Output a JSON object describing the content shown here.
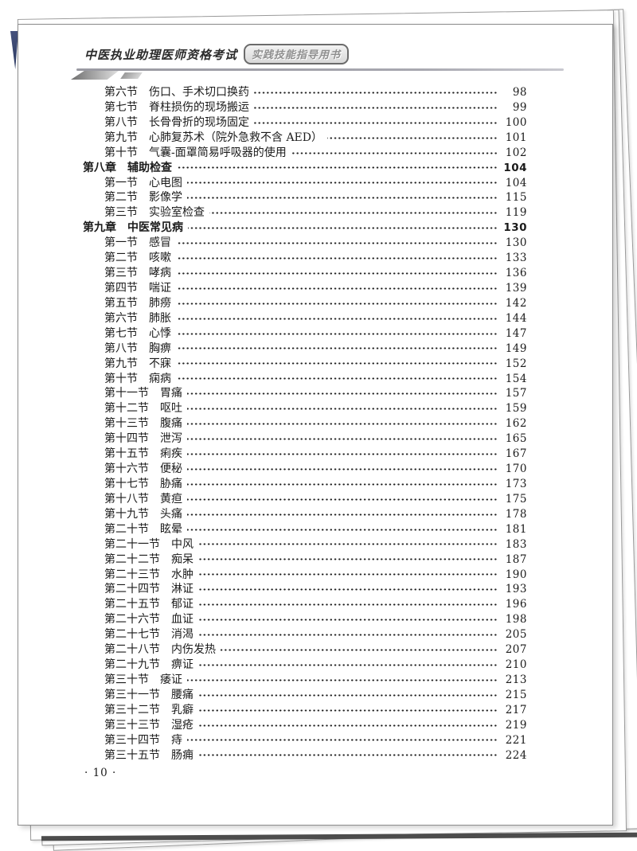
{
  "header": {
    "series_title": "中医执业助理医师资格考试",
    "badge_label": "实践技能指导用书"
  },
  "toc": {
    "entries": [
      {
        "level": "section",
        "label": "第六节",
        "title": "伤口、手术切口换药",
        "page": "98"
      },
      {
        "level": "section",
        "label": "第七节",
        "title": "脊柱损伤的现场搬运",
        "page": "99"
      },
      {
        "level": "section",
        "label": "第八节",
        "title": "长骨骨折的现场固定",
        "page": "100"
      },
      {
        "level": "section",
        "label": "第九节",
        "title": "心肺复苏术（院外急救不含 AED）",
        "page": "101"
      },
      {
        "level": "section",
        "label": "第十节",
        "title": "气囊-面罩简易呼吸器的使用",
        "page": "102"
      },
      {
        "level": "chapter",
        "label": "第八章",
        "title": "辅助检查",
        "page": "104"
      },
      {
        "level": "section",
        "label": "第一节",
        "title": "心电图",
        "page": "104"
      },
      {
        "level": "section",
        "label": "第二节",
        "title": "影像学",
        "page": "115"
      },
      {
        "level": "section",
        "label": "第三节",
        "title": "实验室检查",
        "page": "119"
      },
      {
        "level": "chapter",
        "label": "第九章",
        "title": "中医常见病",
        "page": "130"
      },
      {
        "level": "section",
        "label": "第一节",
        "title": "感冒",
        "page": "130"
      },
      {
        "level": "section",
        "label": "第二节",
        "title": "咳嗽",
        "page": "133"
      },
      {
        "level": "section",
        "label": "第三节",
        "title": "哮病",
        "page": "136"
      },
      {
        "level": "section",
        "label": "第四节",
        "title": "喘证",
        "page": "139"
      },
      {
        "level": "section",
        "label": "第五节",
        "title": "肺痨",
        "page": "142"
      },
      {
        "level": "section",
        "label": "第六节",
        "title": "肺胀",
        "page": "144"
      },
      {
        "level": "section",
        "label": "第七节",
        "title": "心悸",
        "page": "147"
      },
      {
        "level": "section",
        "label": "第八节",
        "title": "胸痹",
        "page": "149"
      },
      {
        "level": "section",
        "label": "第九节",
        "title": "不寐",
        "page": "152"
      },
      {
        "level": "section",
        "label": "第十节",
        "title": "痫病",
        "page": "154"
      },
      {
        "level": "section",
        "label": "第十一节",
        "title": "胃痛",
        "page": "157"
      },
      {
        "level": "section",
        "label": "第十二节",
        "title": "呕吐",
        "page": "159"
      },
      {
        "level": "section",
        "label": "第十三节",
        "title": "腹痛",
        "page": "162"
      },
      {
        "level": "section",
        "label": "第十四节",
        "title": "泄泻",
        "page": "165"
      },
      {
        "level": "section",
        "label": "第十五节",
        "title": "痢疾",
        "page": "167"
      },
      {
        "level": "section",
        "label": "第十六节",
        "title": "便秘",
        "page": "170"
      },
      {
        "level": "section",
        "label": "第十七节",
        "title": "胁痛",
        "page": "173"
      },
      {
        "level": "section",
        "label": "第十八节",
        "title": "黄疸",
        "page": "175"
      },
      {
        "level": "section",
        "label": "第十九节",
        "title": "头痛",
        "page": "178"
      },
      {
        "level": "section",
        "label": "第二十节",
        "title": "眩晕",
        "page": "181"
      },
      {
        "level": "section",
        "label": "第二十一节",
        "title": "中风",
        "page": "183"
      },
      {
        "level": "section",
        "label": "第二十二节",
        "title": "痴呆",
        "page": "187"
      },
      {
        "level": "section",
        "label": "第二十三节",
        "title": "水肿",
        "page": "190"
      },
      {
        "level": "section",
        "label": "第二十四节",
        "title": "淋证",
        "page": "193"
      },
      {
        "level": "section",
        "label": "第二十五节",
        "title": "郁证",
        "page": "196"
      },
      {
        "level": "section",
        "label": "第二十六节",
        "title": "血证",
        "page": "198"
      },
      {
        "level": "section",
        "label": "第二十七节",
        "title": "消渴",
        "page": "205"
      },
      {
        "level": "section",
        "label": "第二十八节",
        "title": "内伤发热",
        "page": "207"
      },
      {
        "level": "section",
        "label": "第二十九节",
        "title": "痹证",
        "page": "210"
      },
      {
        "level": "section",
        "label": "第三十节",
        "title": "痿证",
        "page": "213"
      },
      {
        "level": "section",
        "label": "第三十一节",
        "title": "腰痛",
        "page": "215"
      },
      {
        "level": "section",
        "label": "第三十二节",
        "title": "乳癖",
        "page": "217"
      },
      {
        "level": "section",
        "label": "第三十三节",
        "title": "湿疮",
        "page": "219"
      },
      {
        "level": "section",
        "label": "第三十四节",
        "title": "痔",
        "page": "221"
      },
      {
        "level": "section",
        "label": "第三十五节",
        "title": "肠痈",
        "page": "224"
      }
    ]
  },
  "footer": {
    "page_number": "· 10 ·"
  },
  "colors": {
    "cover_blue": "linear-gradient(180deg,#46527c,#2c3a62)",
    "cover_olive": "linear-gradient(180deg,#b5a72f,#8e821f)"
  }
}
